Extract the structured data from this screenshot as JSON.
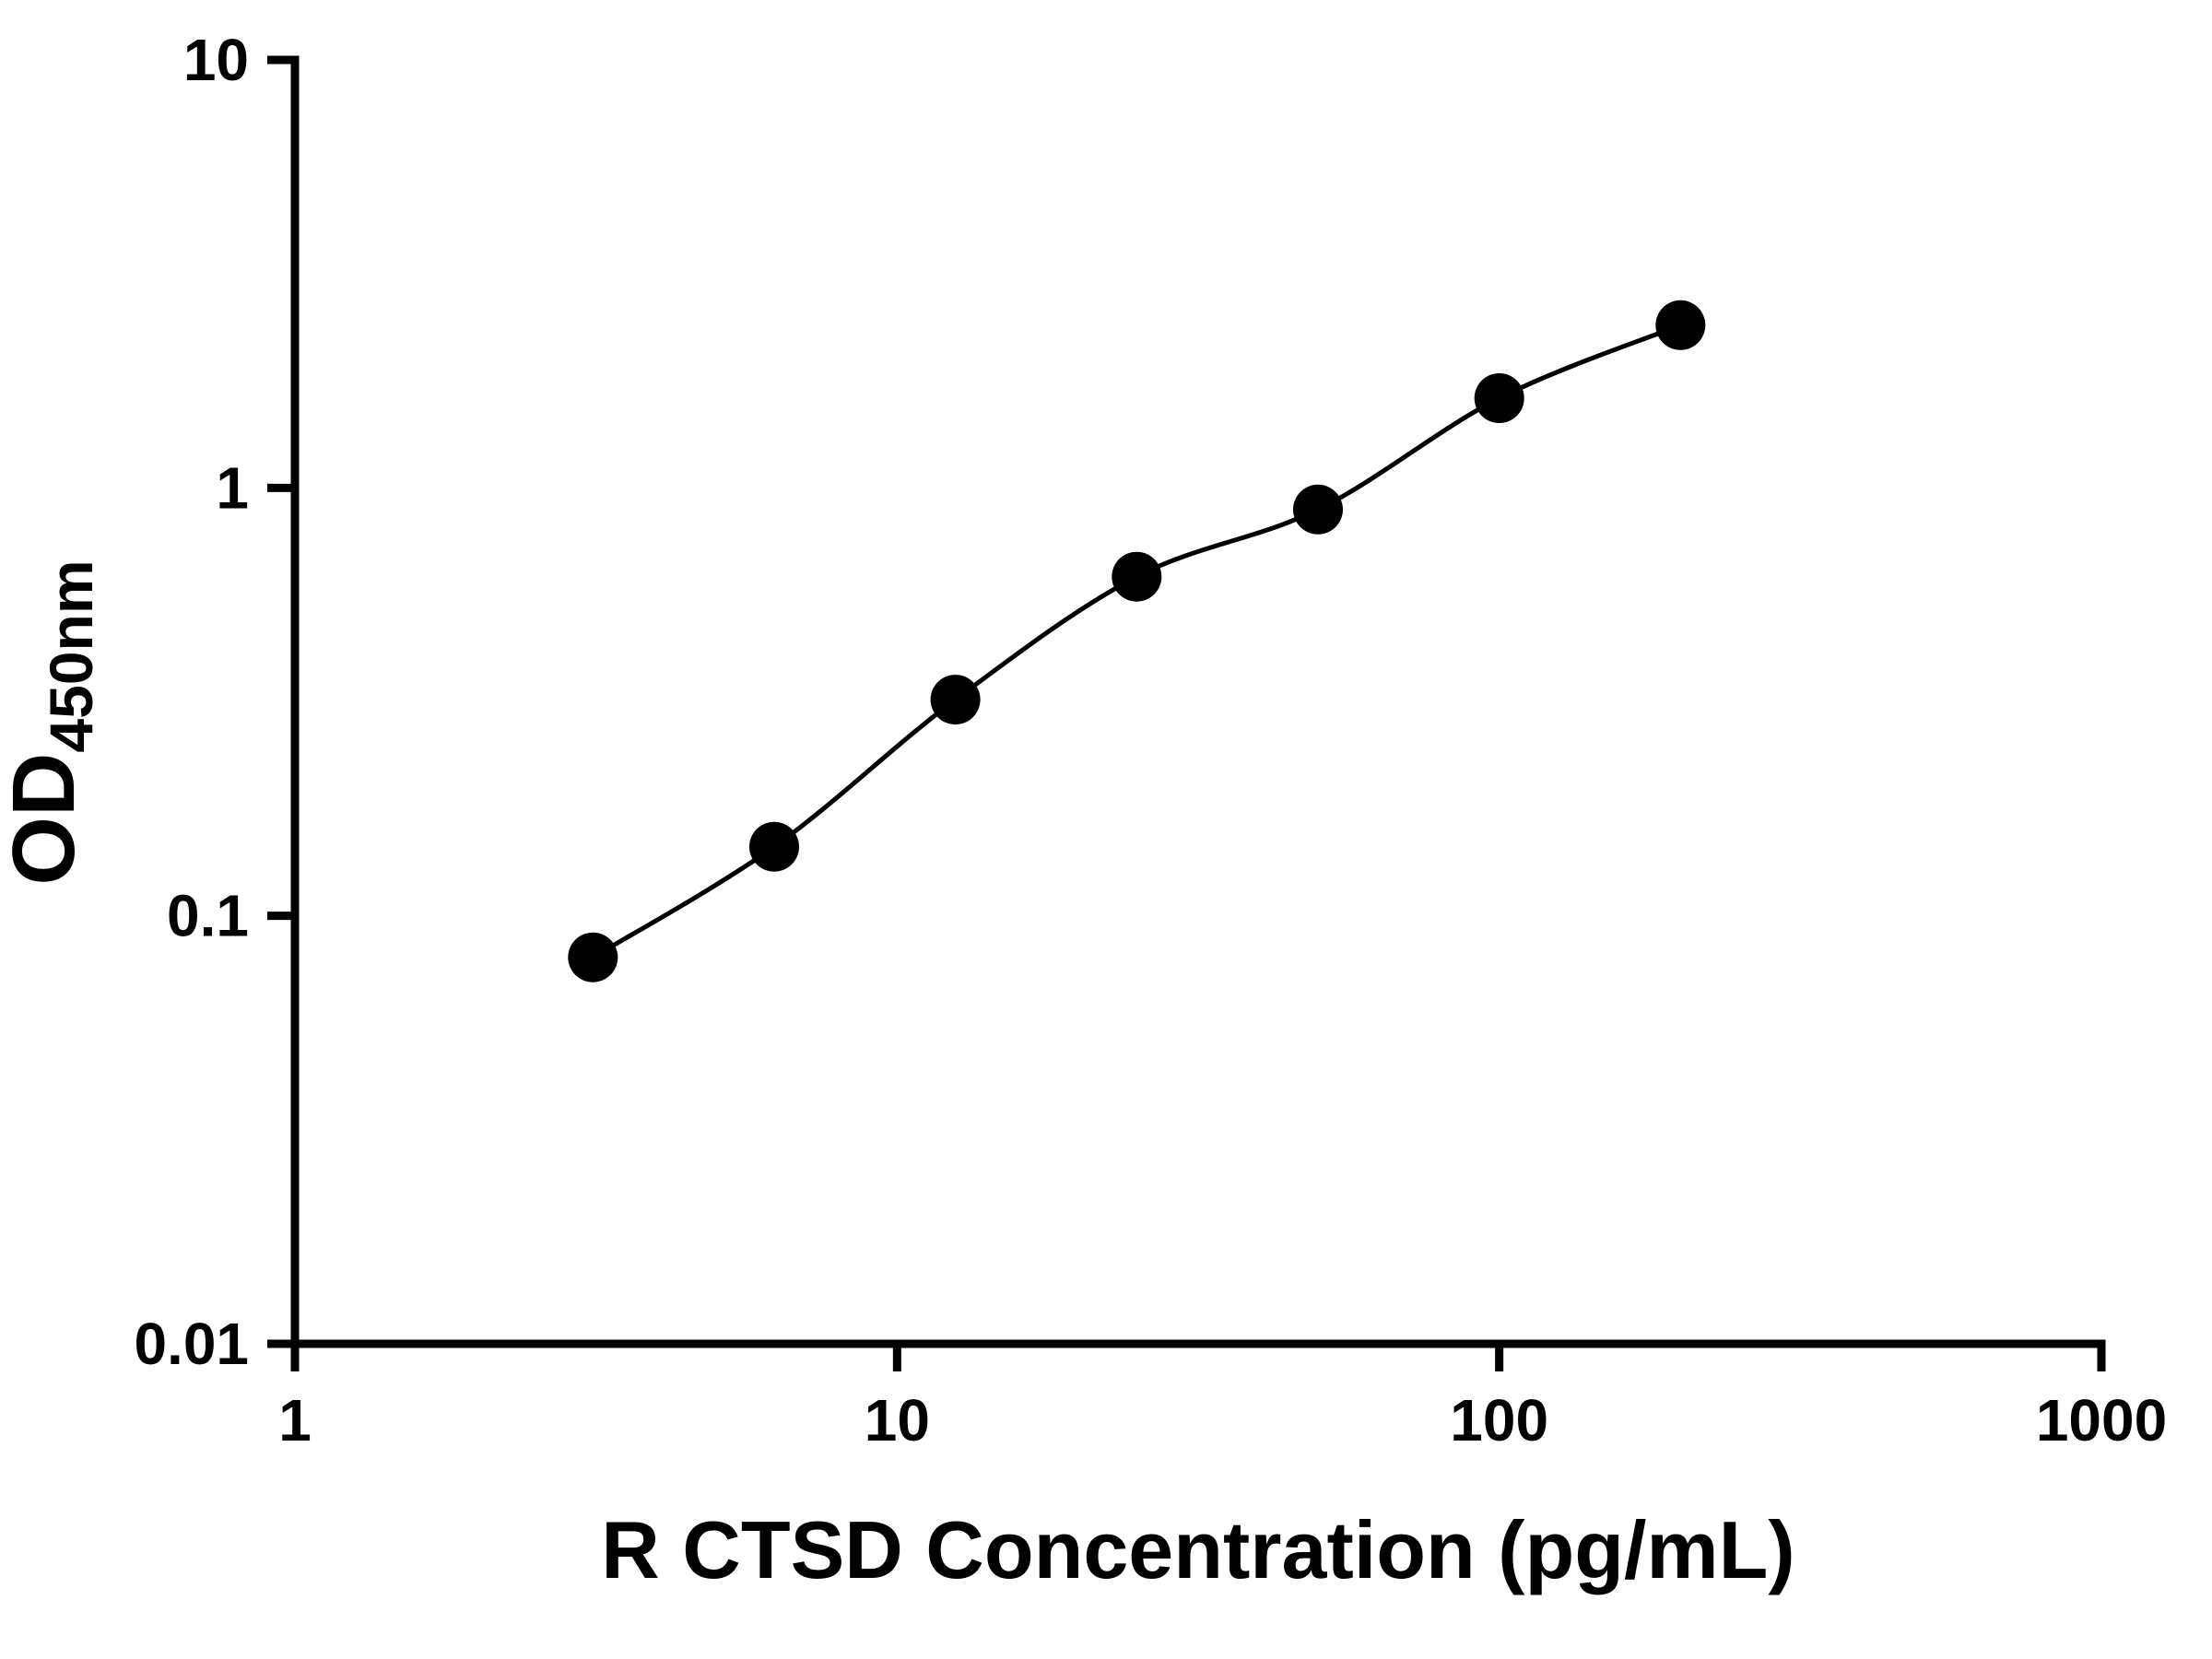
{
  "figure": {
    "background": "#ffffff"
  },
  "chart_data": {
    "type": "scatter",
    "x": [
      3.125,
      6.25,
      12.5,
      25,
      50,
      100,
      200
    ],
    "y": [
      0.08,
      0.145,
      0.32,
      0.62,
      0.89,
      1.62,
      2.4
    ],
    "title": "",
    "xlabel": "R CTSD Concentration (pg/mL)",
    "ylabel": "OD",
    "ylabel_subscript": "450nm",
    "xscale": "log",
    "yscale": "log",
    "xlim": [
      1,
      1000
    ],
    "ylim": [
      0.01,
      10
    ],
    "x_ticks": [
      1,
      10,
      100,
      1000
    ],
    "x_tick_labels": [
      "1",
      "10",
      "100",
      "1000"
    ],
    "y_ticks": [
      0.01,
      0.1,
      1,
      10
    ],
    "y_tick_labels": [
      "0.01",
      "0.1",
      "1",
      "10"
    ],
    "grid": false,
    "legend_position": "none",
    "marker": "filled-circle",
    "marker_color": "#000000",
    "line_style": "smooth-fit-curve",
    "line_color": "#000000",
    "axis_color": "#000000",
    "background_color": "#ffffff"
  }
}
